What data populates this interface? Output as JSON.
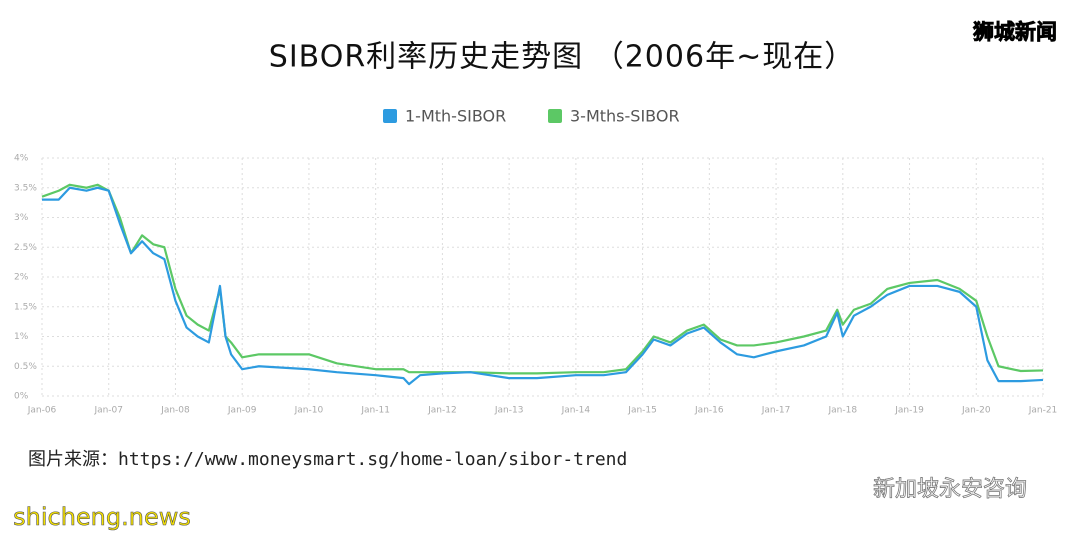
{
  "chart_data": {
    "type": "line",
    "title": "SIBOR利率历史走势图 （2006年~现在）",
    "source": "图片来源：https://www.moneysmart.sg/home-loan/sibor-trend",
    "watermarks": [
      "狮城新闻",
      "新加坡永安咨询",
      "shicheng.news"
    ],
    "x": [
      "2006-01",
      "2006-04",
      "2006-06",
      "2006-09",
      "2006-11",
      "2007-01",
      "2007-03",
      "2007-05",
      "2007-07",
      "2007-09",
      "2007-11",
      "2008-01",
      "2008-03",
      "2008-05",
      "2008-07",
      "2008-09",
      "2008-10",
      "2008-11",
      "2009-01",
      "2009-04",
      "2010-01",
      "2010-06",
      "2011-01",
      "2011-06",
      "2011-07",
      "2011-09",
      "2012-01",
      "2012-06",
      "2013-01",
      "2013-06",
      "2014-01",
      "2014-06",
      "2014-10",
      "2015-01",
      "2015-03",
      "2015-06",
      "2015-09",
      "2015-12",
      "2016-03",
      "2016-06",
      "2016-09",
      "2017-01",
      "2017-06",
      "2017-10",
      "2017-12",
      "2018-01",
      "2018-03",
      "2018-06",
      "2018-09",
      "2019-01",
      "2019-06",
      "2019-10",
      "2020-01",
      "2020-03",
      "2020-05",
      "2020-09",
      "2021-01"
    ],
    "series": [
      {
        "name": "1-Mth-SIBOR",
        "color": "#2d9be0",
        "values": [
          3.3,
          3.3,
          3.5,
          3.45,
          3.5,
          3.45,
          2.9,
          2.4,
          2.6,
          2.4,
          2.3,
          1.6,
          1.15,
          1.0,
          0.9,
          1.85,
          1.0,
          0.7,
          0.45,
          0.5,
          0.45,
          0.4,
          0.35,
          0.3,
          0.2,
          0.35,
          0.38,
          0.4,
          0.3,
          0.3,
          0.35,
          0.35,
          0.4,
          0.7,
          0.95,
          0.85,
          1.05,
          1.15,
          0.9,
          0.7,
          0.65,
          0.75,
          0.85,
          1.0,
          1.4,
          1.0,
          1.35,
          1.5,
          1.7,
          1.85,
          1.85,
          1.75,
          1.5,
          0.6,
          0.25,
          0.25,
          0.27
        ]
      },
      {
        "name": "3-Mths-SIBOR",
        "color": "#5cc865",
        "values": [
          3.35,
          3.45,
          3.55,
          3.5,
          3.55,
          3.45,
          3.0,
          2.4,
          2.7,
          2.55,
          2.5,
          1.8,
          1.35,
          1.2,
          1.1,
          1.8,
          1.0,
          0.9,
          0.65,
          0.7,
          0.7,
          0.55,
          0.45,
          0.45,
          0.4,
          0.4,
          0.4,
          0.4,
          0.38,
          0.38,
          0.4,
          0.4,
          0.45,
          0.75,
          1.0,
          0.9,
          1.1,
          1.2,
          0.95,
          0.85,
          0.85,
          0.9,
          1.0,
          1.1,
          1.45,
          1.2,
          1.45,
          1.55,
          1.8,
          1.9,
          1.95,
          1.8,
          1.6,
          1.0,
          0.5,
          0.42,
          0.43
        ]
      }
    ],
    "xlim": [
      "2006-01",
      "2021-01"
    ],
    "xticks": [
      {
        "value": "2006-01",
        "label": "Jan-06"
      },
      {
        "value": "2007-01",
        "label": "Jan-07"
      },
      {
        "value": "2008-01",
        "label": "Jan-08"
      },
      {
        "value": "2009-01",
        "label": "Jan-09"
      },
      {
        "value": "2010-01",
        "label": "Jan-10"
      },
      {
        "value": "2011-01",
        "label": "Jan-11"
      },
      {
        "value": "2012-01",
        "label": "Jan-12"
      },
      {
        "value": "2013-01",
        "label": "Jan-13"
      },
      {
        "value": "2014-01",
        "label": "Jan-14"
      },
      {
        "value": "2015-01",
        "label": "Jan-15"
      },
      {
        "value": "2016-01",
        "label": "Jan-16"
      },
      {
        "value": "2017-01",
        "label": "Jan-17"
      },
      {
        "value": "2018-01",
        "label": "Jan-18"
      },
      {
        "value": "2019-01",
        "label": "Jan-19"
      },
      {
        "value": "2020-01",
        "label": "Jan-20"
      },
      {
        "value": "2021-01",
        "label": "Jan-21"
      }
    ],
    "ylim": [
      0,
      4
    ],
    "yticks": [
      {
        "value": 0,
        "label": "0%"
      },
      {
        "value": 0.5,
        "label": "0.5%"
      },
      {
        "value": 1,
        "label": "1%"
      },
      {
        "value": 1.5,
        "label": "1.5%"
      },
      {
        "value": 2,
        "label": "2%"
      },
      {
        "value": 2.5,
        "label": "2.5%"
      },
      {
        "value": 3,
        "label": "3%"
      },
      {
        "value": 3.5,
        "label": "3.5%"
      },
      {
        "value": 4,
        "label": "4%"
      }
    ],
    "grid": true
  }
}
